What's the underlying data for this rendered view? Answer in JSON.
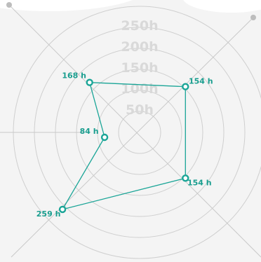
{
  "chart_data": {
    "type": "radar",
    "ring_labels": [
      "50h",
      "100h",
      "150h",
      "200h",
      "250h"
    ],
    "ring_values": [
      50,
      100,
      150,
      200,
      250
    ],
    "points": [
      {
        "value": 168,
        "label": "168 h"
      },
      {
        "value": 154,
        "label": "154 h"
      },
      {
        "value": 154,
        "label": "154 h"
      },
      {
        "value": 259,
        "label": "259 h"
      },
      {
        "value": 84,
        "label": "84 h"
      }
    ],
    "grid": true,
    "colors": {
      "series": "#1aa597",
      "grid": "#cfcfcf",
      "ring_label": "#d9d9d9",
      "background": "#f4f4f4"
    }
  }
}
